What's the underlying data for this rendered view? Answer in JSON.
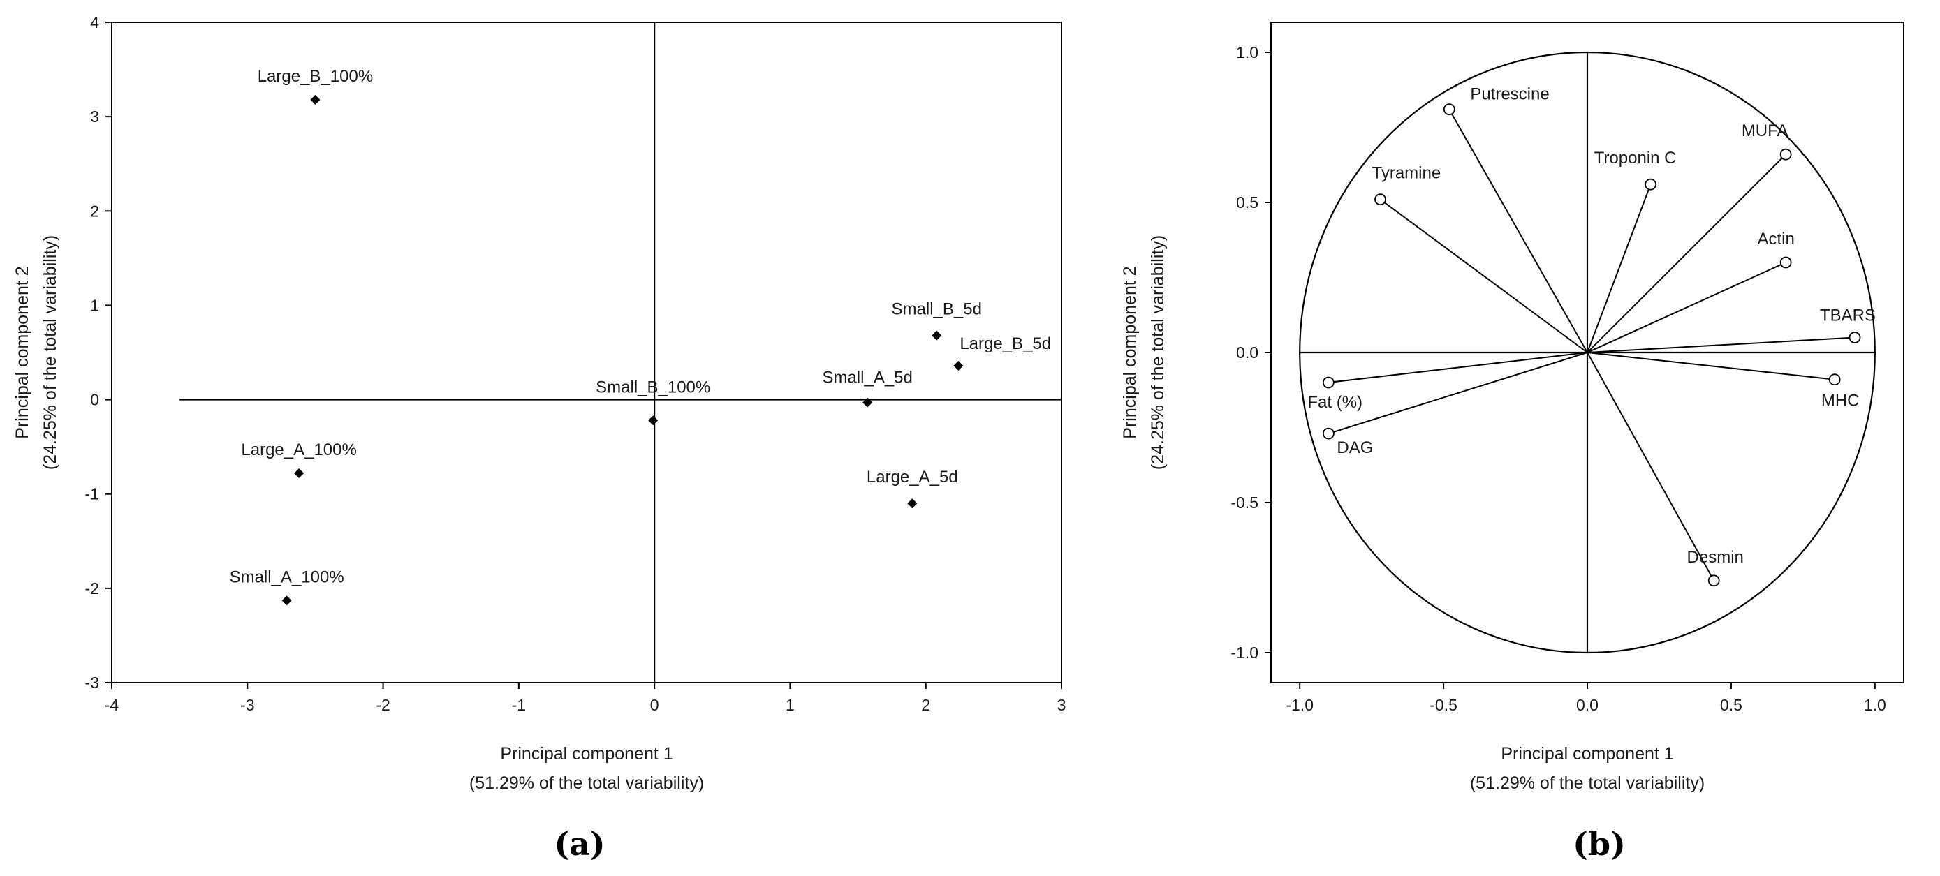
{
  "chart_data": [
    {
      "type": "scatter",
      "panel_label": "(a)",
      "xlabel": "Principal component 1",
      "xlabel_sub": "(51.29% of the total variability)",
      "ylabel": "Principal component 2",
      "ylabel_sub": "(24.25% of the total variability)",
      "xlim": [
        -4,
        3
      ],
      "ylim": [
        -3,
        4
      ],
      "xticks": [
        "-4",
        "-3",
        "-2",
        "-1",
        "0",
        "1",
        "2",
        "3"
      ],
      "yticks": [
        "-3",
        "-2",
        "-1",
        "0",
        "1",
        "2",
        "3",
        "4"
      ],
      "grid": false,
      "series": [
        {
          "points": [
            {
              "label": "Large_B_100%",
              "x": -2.5,
              "y": 3.18
            },
            {
              "label": "Small_B_5d",
              "x": 2.08,
              "y": 0.68
            },
            {
              "label": "Large_B_5d",
              "x": 2.24,
              "y": 0.36
            },
            {
              "label": "Small_B_100%",
              "x": -0.01,
              "y": -0.22
            },
            {
              "label": "Small_A_5d",
              "x": 1.57,
              "y": -0.03
            },
            {
              "label": "Large_A_100%",
              "x": -2.62,
              "y": -0.78
            },
            {
              "label": "Large_A_5d",
              "x": 1.9,
              "y": -1.1
            },
            {
              "label": "Small_A_100%",
              "x": -2.71,
              "y": -2.13
            }
          ]
        }
      ]
    },
    {
      "type": "scatter",
      "panel_label": "(b)",
      "xlabel": "Principal component 1",
      "xlabel_sub": "(51.29% of the total variability)",
      "ylabel": "Principal component 2",
      "ylabel_sub": "(24.25% of the total variability)",
      "xlim": [
        -1.1,
        1.1
      ],
      "ylim": [
        -1.1,
        1.1
      ],
      "xticks": [
        "-1.0",
        "-0.5",
        "0.0",
        "0.5",
        "1.0"
      ],
      "yticks": [
        "-1.0",
        "-0.5",
        "0.0",
        "0.5",
        "1.0"
      ],
      "grid": false,
      "unit_circle": true,
      "series": [
        {
          "points": [
            {
              "label": "Putrescine",
              "x": -0.48,
              "y": 0.81
            },
            {
              "label": "Tyramine",
              "x": -0.72,
              "y": 0.51
            },
            {
              "label": "Troponin C",
              "x": 0.22,
              "y": 0.56
            },
            {
              "label": "MUFA",
              "x": 0.69,
              "y": 0.66
            },
            {
              "label": "Actin",
              "x": 0.69,
              "y": 0.3
            },
            {
              "label": "TBARS",
              "x": 0.93,
              "y": 0.05
            },
            {
              "label": "MHC",
              "x": 0.86,
              "y": -0.09
            },
            {
              "label": "Fat (%)",
              "x": -0.9,
              "y": -0.1
            },
            {
              "label": "DAG",
              "x": -0.9,
              "y": -0.27
            },
            {
              "label": "Desmin",
              "x": 0.44,
              "y": -0.76
            }
          ]
        }
      ]
    }
  ]
}
